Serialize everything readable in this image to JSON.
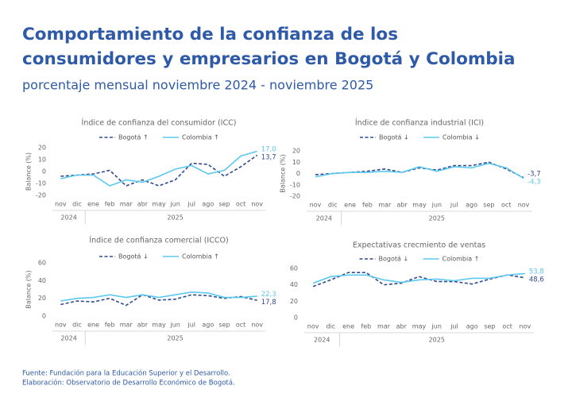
{
  "title_lines": [
    "Comportamiento de la confianza de los",
    "consumidores y empresarios en Bogotá y Colombia"
  ],
  "subtitle": "porcentaje mensual noviembre 2024 - noviembre 2025",
  "source": "Fuente: Fundación para la Educación Superior y el Desarrollo.",
  "credit": "Elaboración: Observatorio de Desarrollo Económico de Bogotá.",
  "chart_data": [
    {
      "type": "line",
      "title": "Índice de confianza del consumidor (ICC)",
      "y_label": "Balance (%)",
      "categories": [
        "nov",
        "dic",
        "ene",
        "feb",
        "mar",
        "abr",
        "may",
        "jun",
        "jul",
        "ago",
        "sep",
        "oct",
        "nov"
      ],
      "category_years": [
        "2024",
        "2024",
        "2025",
        "2025",
        "2025",
        "2025",
        "2025",
        "2025",
        "2025",
        "2025",
        "2025",
        "2025",
        "2025"
      ],
      "ylim": [
        -20,
        20
      ],
      "yticks": [
        -20,
        -10,
        0,
        10,
        20
      ],
      "series": [
        {
          "name": "Bogotá ↑",
          "color": "#2f4a8f",
          "dashed": true,
          "values": [
            -4,
            -3,
            -2,
            1,
            -12,
            -7,
            -12,
            -7,
            7,
            6,
            -4,
            4,
            13.7
          ],
          "value_labels": [
            null,
            null,
            null,
            null,
            null,
            null,
            null,
            null,
            null,
            null,
            null,
            null,
            "13,7"
          ]
        },
        {
          "name": "Colombia ↑",
          "color": "#5bc8ef",
          "dashed": false,
          "values": [
            -6,
            -3,
            -3,
            -12,
            -7,
            -9,
            -4,
            2,
            5,
            -2,
            1,
            13,
            17.0
          ],
          "value_labels": [
            null,
            null,
            null,
            null,
            null,
            null,
            null,
            null,
            null,
            null,
            null,
            null,
            "17,0"
          ]
        }
      ]
    },
    {
      "type": "line",
      "title": "Índice de confianza industrial (ICI)",
      "y_label": "Balance (%)",
      "categories": [
        "nov",
        "dic",
        "ene",
        "feb",
        "mar",
        "abr",
        "may",
        "jun",
        "jul",
        "ago",
        "sep",
        "oct",
        "nov"
      ],
      "category_years": [
        "2024",
        "2024",
        "2025",
        "2025",
        "2025",
        "2025",
        "2025",
        "2025",
        "2025",
        "2025",
        "2025",
        "2025",
        "2025"
      ],
      "ylim": [
        -20,
        20
      ],
      "yticks": [
        -20,
        -10,
        0,
        10,
        20
      ],
      "series": [
        {
          "name": "Bogotá ↓",
          "color": "#2f4a8f",
          "dashed": true,
          "values": [
            -1,
            0,
            1,
            2,
            4,
            1,
            5,
            3,
            7,
            7,
            10,
            4,
            -3.7
          ],
          "value_labels": [
            null,
            null,
            null,
            null,
            null,
            null,
            null,
            null,
            null,
            null,
            null,
            null,
            "-3,7"
          ]
        },
        {
          "name": "Colombia ↓",
          "color": "#5bc8ef",
          "dashed": false,
          "values": [
            -3,
            0,
            1,
            1,
            2,
            1,
            6,
            2,
            6,
            5,
            9,
            5,
            -4.3
          ],
          "value_labels": [
            null,
            null,
            null,
            null,
            null,
            null,
            null,
            null,
            null,
            null,
            null,
            null,
            "-4,3"
          ]
        }
      ]
    },
    {
      "type": "line",
      "title": "Índice de confianza comercial (ICCO)",
      "y_label": "Balance (%)",
      "categories": [
        "nov",
        "dic",
        "ene",
        "feb",
        "mar",
        "abr",
        "may",
        "jun",
        "jul",
        "ago",
        "sep",
        "oct",
        "nov"
      ],
      "category_years": [
        "2024",
        "2024",
        "2025",
        "2025",
        "2025",
        "2025",
        "2025",
        "2025",
        "2025",
        "2025",
        "2025",
        "2025",
        "2025"
      ],
      "ylim": [
        0,
        60
      ],
      "yticks": [
        0,
        20,
        40,
        60
      ],
      "series": [
        {
          "name": "Bogotá ↓",
          "color": "#2f4a8f",
          "dashed": true,
          "values": [
            13,
            17,
            16,
            20,
            12,
            24,
            18,
            19,
            24,
            23,
            20,
            22,
            17.8
          ],
          "value_labels": [
            null,
            null,
            null,
            null,
            null,
            null,
            null,
            null,
            null,
            null,
            null,
            null,
            "17,8"
          ]
        },
        {
          "name": "Colombia ↑",
          "color": "#5bc8ef",
          "dashed": false,
          "values": [
            17,
            20,
            21,
            24,
            21,
            24,
            21,
            24,
            27,
            26,
            21,
            21,
            22.3
          ],
          "value_labels": [
            null,
            null,
            null,
            null,
            null,
            null,
            null,
            null,
            null,
            null,
            null,
            null,
            "22,3"
          ]
        }
      ]
    },
    {
      "type": "line",
      "title": "Expectativas crecmiento de ventas",
      "categories": [
        "nov",
        "dic",
        "ene",
        "feb",
        "mar",
        "abr",
        "may",
        "jun",
        "jul",
        "ago",
        "sep",
        "oct",
        "nov"
      ],
      "category_years": [
        "2024",
        "2024",
        "2025",
        "2025",
        "2025",
        "2025",
        "2025",
        "2025",
        "2025",
        "2025",
        "2025",
        "2025",
        "2025"
      ],
      "ylim": [
        0,
        60
      ],
      "yticks": [
        0,
        20,
        40,
        60
      ],
      "series": [
        {
          "name": "Bogotá ↓",
          "color": "#2f4a8f",
          "dashed": true,
          "values": [
            38,
            46,
            55,
            55,
            40,
            42,
            50,
            44,
            44,
            41,
            47,
            52,
            48.6
          ],
          "value_labels": [
            null,
            null,
            null,
            null,
            null,
            null,
            null,
            null,
            null,
            null,
            null,
            null,
            "48,6"
          ]
        },
        {
          "name": "Colombia ↑",
          "color": "#5bc8ef",
          "dashed": false,
          "values": [
            42,
            50,
            52,
            52,
            46,
            43,
            46,
            47,
            45,
            48,
            48,
            52,
            53.8
          ],
          "value_labels": [
            null,
            null,
            null,
            null,
            null,
            null,
            null,
            null,
            null,
            null,
            null,
            null,
            "53,8"
          ]
        }
      ]
    }
  ]
}
